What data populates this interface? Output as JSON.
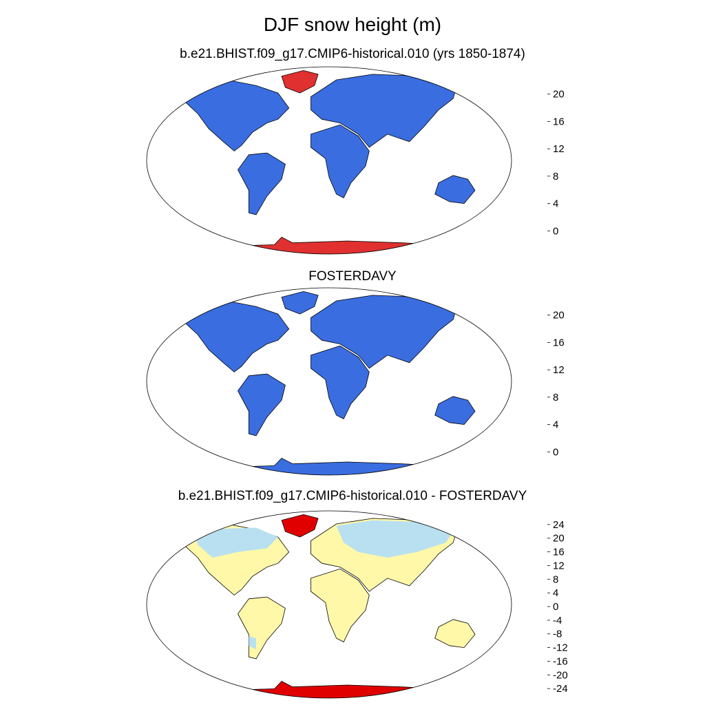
{
  "figure": {
    "title": "DJF snow height (m)"
  },
  "panels": [
    {
      "id": "model",
      "title": "b.e21.BHIST.f09_g17.CMIP6-historical.010 (yrs 1850-1874)",
      "colorbar": {
        "labels": [
          "20",
          "16",
          "12",
          "8",
          "4",
          "0"
        ],
        "colors": [
          "#e03030",
          "#ff4010",
          "#f8b818",
          "#c8e6f8",
          "#18c0f8",
          "#3070e8",
          "#4018f8"
        ]
      },
      "land_color": "#3a6de0",
      "greenland_color": "#e03030",
      "antarctica_color": "#e03030"
    },
    {
      "id": "obs",
      "title": "FOSTERDAVY",
      "colorbar": {
        "labels": [
          "20",
          "16",
          "12",
          "8",
          "4",
          "0"
        ],
        "colors": [
          "#e03030",
          "#ff4010",
          "#f8b818",
          "#c8e6f8",
          "#18c0f8",
          "#3070e8",
          "#4018f8"
        ]
      },
      "land_color": "#3a6de0",
      "greenland_color": "#3a6de0",
      "antarctica_color": "#3a6de0"
    },
    {
      "id": "diff",
      "title": "b.e21.BHIST.f09_g17.CMIP6-historical.010 - FOSTERDAVY",
      "colorbar": {
        "labels": [
          "24",
          "20",
          "16",
          "12",
          "8",
          "4",
          "0",
          "-4",
          "-8",
          "-12",
          "-16",
          "-20",
          "-24"
        ],
        "colors": [
          "#c81818",
          "#f00000",
          "#ff5010",
          "#ff8c00",
          "#ffa800",
          "#ffd040",
          "#fff8a8",
          "#b8e0f0",
          "#78c8f0",
          "#40a8f8",
          "#1890f8",
          "#1060f0",
          "#2030f0",
          "#4010e8"
        ]
      },
      "land_color": "#fff8a8",
      "cold_color": "#b8e0f0",
      "greenland_color": "#e00000",
      "antarctica_color": "#e00000"
    }
  ]
}
